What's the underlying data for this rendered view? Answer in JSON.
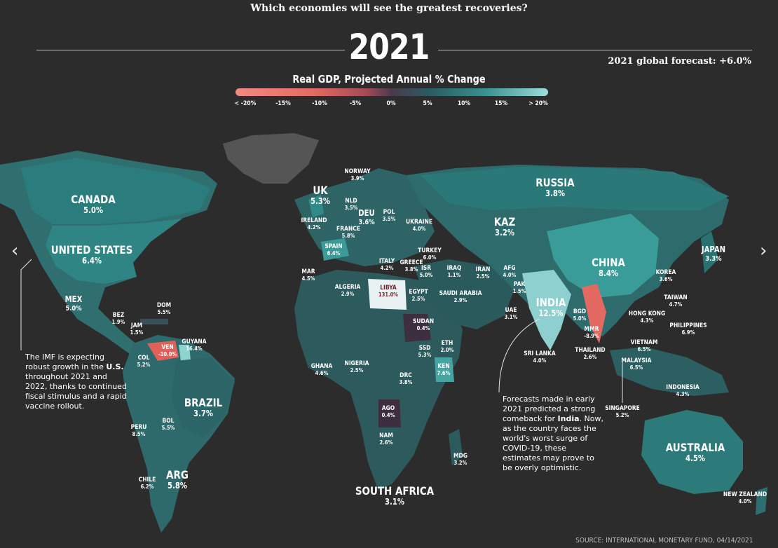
{
  "header": {
    "headline": "Which economies will see the greatest recoveries?",
    "year": "2021",
    "global_forecast": "2021 global forecast: +6.0%",
    "subtitle": "Real GDP, Projected Annual % Change"
  },
  "legend": {
    "ticks": [
      "< -20%",
      "-15%",
      "-10%",
      "-5%",
      "0%",
      "5%",
      "10%",
      "15%",
      "> 20%"
    ],
    "colors": {
      "negative": "#e46a62",
      "zero": "#4a3a4e",
      "positive": "#3a9090",
      "high": "#9fdcdc"
    }
  },
  "countries": [
    {
      "name": "CANADA",
      "value": "5.0%"
    },
    {
      "name": "UNITED STATES",
      "value": "6.4%"
    },
    {
      "name": "MEX",
      "value": "5.0%"
    },
    {
      "name": "BEZ",
      "value": "1.9%"
    },
    {
      "name": "JAM",
      "value": "1.5%"
    },
    {
      "name": "DOM",
      "value": "5.5%"
    },
    {
      "name": "VEN",
      "value": "-10.0%"
    },
    {
      "name": "GUYANA",
      "value": "16.4%"
    },
    {
      "name": "COL",
      "value": "5.2%"
    },
    {
      "name": "BRAZIL",
      "value": "3.7%"
    },
    {
      "name": "PERU",
      "value": "8.5%"
    },
    {
      "name": "BOL",
      "value": "5.5%"
    },
    {
      "name": "CHILE",
      "value": "6.2%"
    },
    {
      "name": "ARG",
      "value": "5.8%"
    },
    {
      "name": "UK",
      "value": "5.3%"
    },
    {
      "name": "IRELAND",
      "value": "4.2%"
    },
    {
      "name": "NORWAY",
      "value": "3.9%"
    },
    {
      "name": "NLD",
      "value": "3.5%"
    },
    {
      "name": "DEU",
      "value": "3.6%"
    },
    {
      "name": "POL",
      "value": "3.5%"
    },
    {
      "name": "FRANCE",
      "value": "5.8%"
    },
    {
      "name": "UKRAINE",
      "value": "4.0%"
    },
    {
      "name": "SPAIN",
      "value": "6.4%"
    },
    {
      "name": "ITALY",
      "value": "4.2%"
    },
    {
      "name": "GREECE",
      "value": "3.8%"
    },
    {
      "name": "TURKEY",
      "value": "6.0%"
    },
    {
      "name": "ISR",
      "value": "5.0%"
    },
    {
      "name": "MAR",
      "value": "4.5%"
    },
    {
      "name": "ALGERIA",
      "value": "2.9%"
    },
    {
      "name": "LIBYA",
      "value": "131.0%"
    },
    {
      "name": "EGYPT",
      "value": "2.5%"
    },
    {
      "name": "SAUDI ARABIA",
      "value": "2.9%"
    },
    {
      "name": "IRAQ",
      "value": "1.1%"
    },
    {
      "name": "IRAN",
      "value": "2.5%"
    },
    {
      "name": "UAE",
      "value": "3.1%"
    },
    {
      "name": "AFG",
      "value": "4.0%"
    },
    {
      "name": "PAK",
      "value": "1.5%"
    },
    {
      "name": "KAZ",
      "value": "3.2%"
    },
    {
      "name": "RUSSIA",
      "value": "3.8%"
    },
    {
      "name": "CHINA",
      "value": "8.4%"
    },
    {
      "name": "INDIA",
      "value": "12.5%"
    },
    {
      "name": "BGD",
      "value": "5.0%"
    },
    {
      "name": "MMR",
      "value": "-8.9%"
    },
    {
      "name": "SRI LANKA",
      "value": "4.0%"
    },
    {
      "name": "THAILAND",
      "value": "2.6%"
    },
    {
      "name": "JAPAN",
      "value": "3.3%"
    },
    {
      "name": "KOREA",
      "value": "3.6%"
    },
    {
      "name": "TAIWAN",
      "value": "4.7%"
    },
    {
      "name": "HONG KONG",
      "value": "4.3%"
    },
    {
      "name": "PHILIPPINES",
      "value": "6.9%"
    },
    {
      "name": "VIETNAM",
      "value": "6.5%"
    },
    {
      "name": "MALAYSIA",
      "value": "6.5%"
    },
    {
      "name": "SINGAPORE",
      "value": "5.2%"
    },
    {
      "name": "INDONESIA",
      "value": "4.3%"
    },
    {
      "name": "AUSTRALIA",
      "value": "4.5%"
    },
    {
      "name": "NEW ZEALAND",
      "value": "4.0%"
    },
    {
      "name": "SUDAN",
      "value": "0.4%"
    },
    {
      "name": "ETH",
      "value": "2.0%"
    },
    {
      "name": "SSD",
      "value": "5.3%"
    },
    {
      "name": "KEN",
      "value": "7.6%"
    },
    {
      "name": "GHANA",
      "value": "4.6%"
    },
    {
      "name": "NIGERIA",
      "value": "2.5%"
    },
    {
      "name": "DRC",
      "value": "3.8%"
    },
    {
      "name": "AGO",
      "value": "0.4%"
    },
    {
      "name": "NAM",
      "value": "2.6%"
    },
    {
      "name": "MDG",
      "value": "3.2%"
    },
    {
      "name": "SOUTH AFRICA",
      "value": "3.1%"
    }
  ],
  "notes": {
    "us_note": {
      "pre": "The IMF is expecting robust growth in the ",
      "bold": "U.S.",
      "post": " throughout 2021 and 2022, thanks to continued fiscal stimulus and a rapid vaccine rollout."
    },
    "india_note": {
      "pre": "Forecasts made in early 2021 predicted a strong comeback for ",
      "bold": "India",
      "post": ". Now, as the country faces the world's worst surge of COVID-19, these estimates may prove to be overly optimistic."
    }
  },
  "footer": {
    "source": "SOURCE: INTERNATIONAL MONETARY FUND, 04/14/2021"
  },
  "nav": {
    "prev_icon": "chevron-left-icon",
    "next_icon": "chevron-right-icon"
  }
}
